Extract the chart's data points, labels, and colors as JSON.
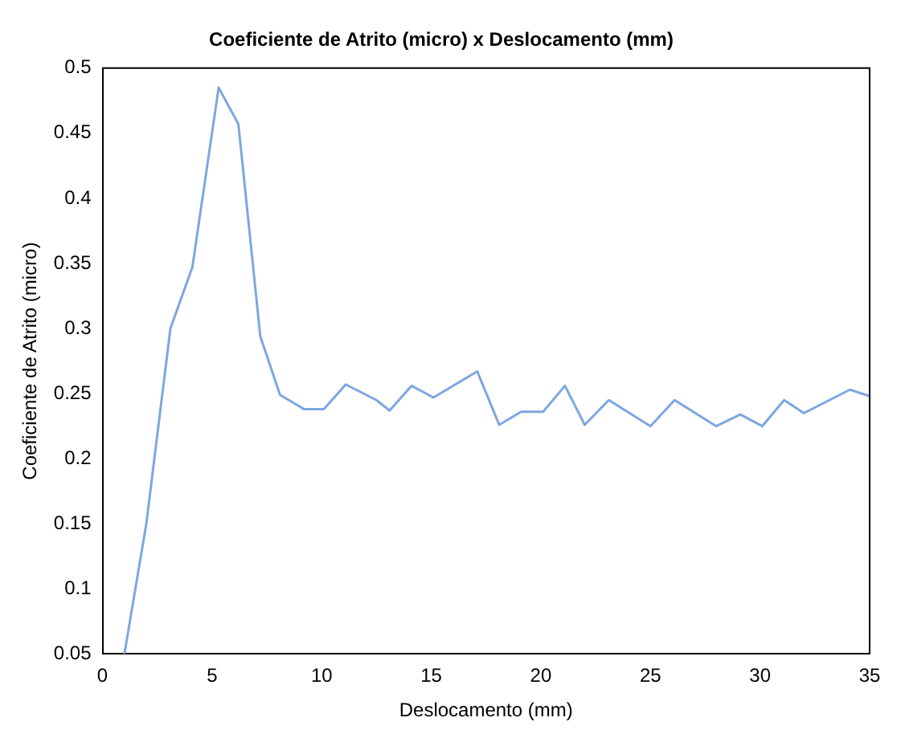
{
  "chart_data": {
    "type": "line",
    "title": "Coeficiente de Atrito (micro) x Deslocamento (mm)",
    "xlabel": "Deslocamento (mm)",
    "ylabel": "Coeficiente de Atrito (micro)",
    "series": [
      {
        "color": "#7ea6e0",
        "x": [
          1,
          2,
          3.1,
          4.1,
          5.3,
          6.2,
          7.2,
          8.1,
          9.2,
          10.1,
          11.1,
          12.5,
          13.1,
          14.1,
          15.1,
          17.1,
          18.1,
          19.1,
          20.1,
          21.1,
          22,
          23.1,
          25,
          26.1,
          28,
          29.1,
          30.1,
          31.1,
          32,
          34.1,
          35
        ],
        "values": [
          0.05,
          0.15,
          0.3,
          0.347,
          0.485,
          0.457,
          0.294,
          0.249,
          0.238,
          0.238,
          0.257,
          0.245,
          0.237,
          0.256,
          0.247,
          0.267,
          0.226,
          0.236,
          0.236,
          0.256,
          0.226,
          0.245,
          0.225,
          0.245,
          0.225,
          0.234,
          0.225,
          0.245,
          0.235,
          0.253,
          0.248
        ]
      }
    ],
    "xlim": [
      0,
      35
    ],
    "xticks": [
      0,
      5,
      10,
      15,
      20,
      25,
      30,
      35
    ],
    "ylim": [
      0.05,
      0.5
    ],
    "yticks": [
      0.05,
      0.1,
      0.15,
      0.2,
      0.25,
      0.3,
      0.35,
      0.4,
      0.45,
      0.5
    ],
    "grid": false,
    "legend": false,
    "marker": "none",
    "line_style": "solid"
  }
}
